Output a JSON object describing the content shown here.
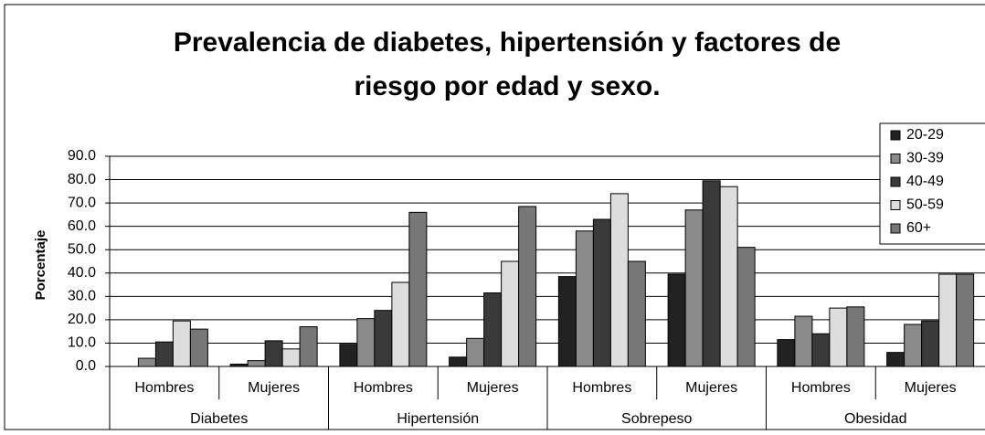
{
  "chart_data": {
    "type": "bar",
    "title": "Prevalencia de diabetes, hipertensión y factores de",
    "title_line2": "riesgo por edad y sexo.",
    "y_label": "Porcentaje",
    "categories": [
      "Hombres",
      "Mujeres",
      "Hombres",
      "Mujeres",
      "Hombres",
      "Mujeres",
      "Hombres",
      "Mujeres"
    ],
    "category_groups": [
      "Diabetes",
      "Hipertensión",
      "Sobrepeso",
      "Obesidad"
    ],
    "series": [
      {
        "name": "20-29",
        "color": "#222222",
        "values": [
          0,
          1.0,
          9.5,
          4,
          38.5,
          39.5,
          11.5,
          6
        ]
      },
      {
        "name": "30-39",
        "color": "#8a8a8a",
        "values": [
          3.5,
          2.5,
          20.5,
          12,
          58,
          67,
          21.5,
          18
        ]
      },
      {
        "name": "40-49",
        "color": "#3a3a3a",
        "values": [
          10.5,
          11,
          24,
          31.5,
          63,
          79.5,
          14,
          19.5
        ]
      },
      {
        "name": "50-59",
        "color": "#dddddd",
        "values": [
          19.5,
          7.5,
          36,
          45,
          74,
          77,
          25,
          39.5
        ]
      },
      {
        "name": "60+",
        "color": "#777777",
        "values": [
          16,
          17,
          66,
          68.5,
          45,
          51,
          25.5,
          39.5
        ]
      }
    ],
    "ylim": [
      0,
      90
    ],
    "yticks": [
      {
        "value": 0,
        "label": "0.0"
      },
      {
        "value": 10,
        "label": "10.0"
      },
      {
        "value": 20,
        "label": "20.0"
      },
      {
        "value": 30,
        "label": "30.0"
      },
      {
        "value": 40,
        "label": "40.0"
      },
      {
        "value": 50,
        "label": "50.0"
      },
      {
        "value": 60,
        "label": "60.0"
      },
      {
        "value": 70,
        "label": "70.0"
      },
      {
        "value": 80,
        "label": "80.0"
      },
      {
        "value": 90,
        "label": "90.0"
      }
    ],
    "grid": true,
    "legend": "upper right"
  }
}
